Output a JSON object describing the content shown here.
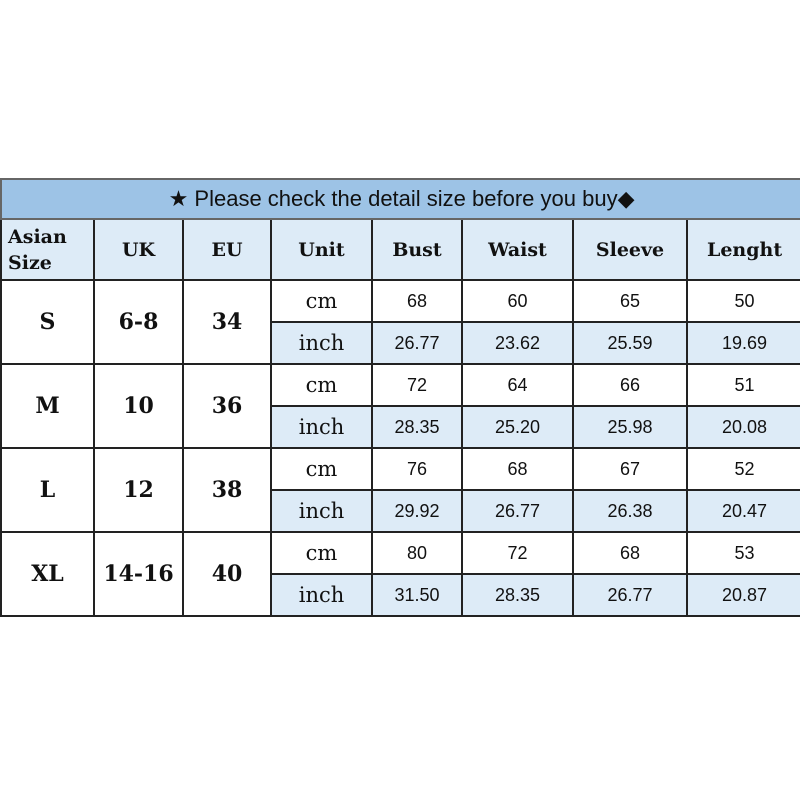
{
  "title": {
    "star_icon": "★",
    "text": "Please check the detail size before you buy",
    "diamond_icon": "◆"
  },
  "colors": {
    "title_bg": "#9dc3e6",
    "header_bg": "#ddebf7",
    "inch_row_bg": "#ddebf7",
    "border": "#222222"
  },
  "headers": [
    "Asian Size",
    "UK",
    "EU",
    "Unit",
    "Bust",
    "Waist",
    "Sleeve",
    "Lenght"
  ],
  "rows": [
    {
      "asian": "S",
      "uk": "6-8",
      "eu": "34",
      "cm": {
        "unit": "cm",
        "values": [
          "68",
          "60",
          "65",
          "50"
        ]
      },
      "inch": {
        "unit": "inch",
        "values": [
          "26.77",
          "23.62",
          "25.59",
          "19.69"
        ]
      }
    },
    {
      "asian": "M",
      "uk": "10",
      "eu": "36",
      "cm": {
        "unit": "cm",
        "values": [
          "72",
          "64",
          "66",
          "51"
        ]
      },
      "inch": {
        "unit": "inch",
        "values": [
          "28.35",
          "25.20",
          "25.98",
          "20.08"
        ]
      }
    },
    {
      "asian": "L",
      "uk": "12",
      "eu": "38",
      "cm": {
        "unit": "cm",
        "values": [
          "76",
          "68",
          "67",
          "52"
        ]
      },
      "inch": {
        "unit": "inch",
        "values": [
          "29.92",
          "26.77",
          "26.38",
          "20.47"
        ]
      }
    },
    {
      "asian": "XL",
      "uk": "14-16",
      "eu": "40",
      "cm": {
        "unit": "cm",
        "values": [
          "80",
          "72",
          "68",
          "53"
        ]
      },
      "inch": {
        "unit": "inch",
        "values": [
          "31.50",
          "28.35",
          "26.77",
          "20.87"
        ]
      }
    }
  ]
}
